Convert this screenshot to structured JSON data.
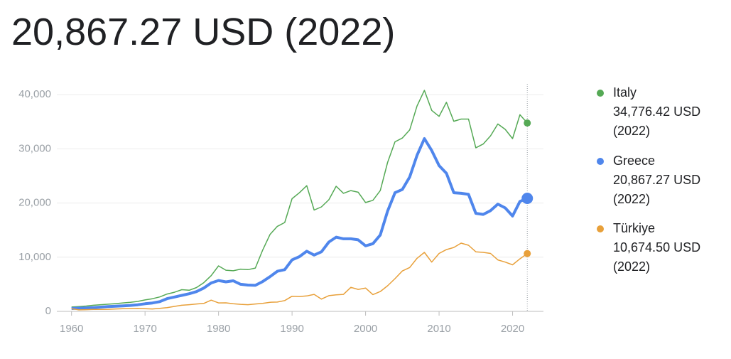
{
  "chart_data": {
    "type": "line",
    "headline": "20,867.27 USD (2022)",
    "x": [
      1960,
      1961,
      1962,
      1963,
      1964,
      1965,
      1966,
      1967,
      1968,
      1969,
      1970,
      1971,
      1972,
      1973,
      1974,
      1975,
      1976,
      1977,
      1978,
      1979,
      1980,
      1981,
      1982,
      1983,
      1984,
      1985,
      1986,
      1987,
      1988,
      1989,
      1990,
      1991,
      1992,
      1993,
      1994,
      1995,
      1996,
      1997,
      1998,
      1999,
      2000,
      2001,
      2002,
      2003,
      2004,
      2005,
      2006,
      2007,
      2008,
      2009,
      2010,
      2011,
      2012,
      2013,
      2014,
      2015,
      2016,
      2017,
      2018,
      2019,
      2020,
      2021,
      2022
    ],
    "series": [
      {
        "name": "Italy",
        "color": "#55a955",
        "legend_value": "34,776.42 USD (2022)",
        "values": [
          800,
          880,
          980,
          1130,
          1230,
          1320,
          1430,
          1560,
          1670,
          1840,
          2110,
          2330,
          2670,
          3200,
          3530,
          4000,
          3900,
          4400,
          5300,
          6600,
          8400,
          7600,
          7500,
          7800,
          7700,
          7990,
          11300,
          14200,
          15700,
          16400,
          20800,
          21900,
          23200,
          18700,
          19300,
          20600,
          23100,
          21800,
          22300,
          22000,
          20100,
          20500,
          22300,
          27500,
          31300,
          32000,
          33500,
          37900,
          40800,
          37100,
          36000,
          38600,
          35100,
          35500,
          35500,
          30200,
          30900,
          32400,
          34600,
          33600,
          31900,
          36300,
          34776.42
        ]
      },
      {
        "name": "Greece",
        "color": "#4f86ec",
        "legend_value": "20,867.27 USD (2022)",
        "values": [
          520,
          590,
          630,
          700,
          790,
          880,
          960,
          1030,
          1100,
          1220,
          1400,
          1550,
          1800,
          2350,
          2650,
          2950,
          3250,
          3650,
          4300,
          5250,
          5700,
          5450,
          5650,
          5000,
          4850,
          4800,
          5500,
          6400,
          7400,
          7700,
          9500,
          10100,
          11100,
          10400,
          11000,
          12800,
          13700,
          13400,
          13400,
          13200,
          12100,
          12500,
          14100,
          18500,
          21900,
          22500,
          24800,
          28800,
          31900,
          29700,
          26900,
          25500,
          21900,
          21800,
          21600,
          18100,
          17900,
          18600,
          19800,
          19100,
          17600,
          20300,
          20867.27
        ]
      },
      {
        "name": "Türkiye",
        "color": "#e8a03a",
        "legend_value": "10,674.50 USD (2022)",
        "values": [
          510,
          280,
          310,
          350,
          370,
          380,
          440,
          480,
          520,
          550,
          500,
          450,
          560,
          690,
          920,
          1130,
          1240,
          1370,
          1470,
          2070,
          1560,
          1580,
          1400,
          1300,
          1230,
          1370,
          1480,
          1680,
          1720,
          2000,
          2790,
          2740,
          2850,
          3140,
          2270,
          2900,
          3050,
          3140,
          4440,
          4050,
          4300,
          3100,
          3660,
          4720,
          6040,
          7460,
          8100,
          9790,
          10900,
          9100,
          10700,
          11400,
          11800,
          12600,
          12200,
          11000,
          10900,
          10700,
          9500,
          9100,
          8600,
          9700,
          10674.5
        ]
      }
    ],
    "xlim": [
      1958,
      2024.2
    ],
    "xticks": [
      1960,
      1970,
      1980,
      1990,
      2000,
      2010,
      2020
    ],
    "ylim": [
      0,
      42000
    ],
    "yticks": [
      0,
      {
        "value": 10000,
        "label": "10,000"
      },
      {
        "value": 20000,
        "label": "20,000"
      },
      {
        "value": 30000,
        "label": "30,000"
      },
      {
        "value": 40000,
        "label": "40,000"
      }
    ],
    "grid": true
  }
}
